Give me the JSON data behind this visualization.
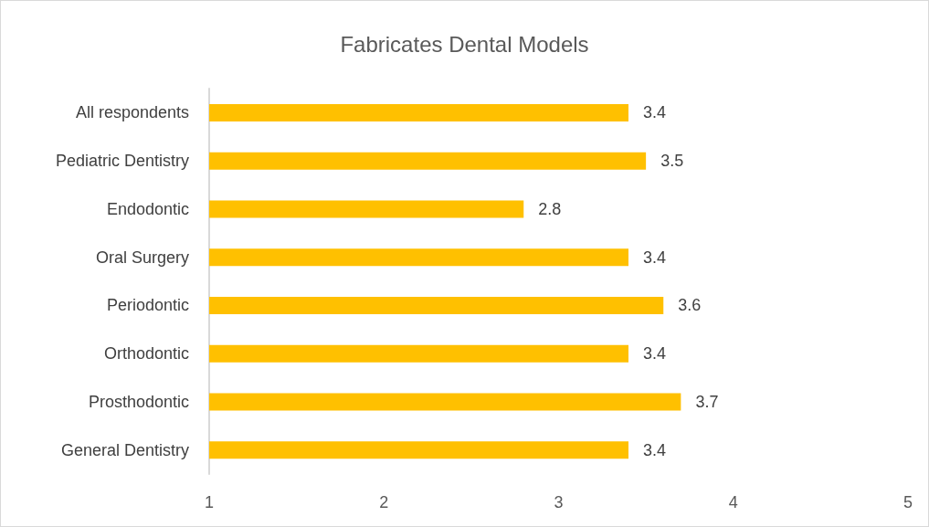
{
  "chart_data": {
    "type": "bar",
    "orientation": "horizontal",
    "title": "Fabricates Dental Models",
    "categories": [
      "All respondents",
      "Pediatric Dentistry",
      "Endodontic",
      "Oral Surgery",
      "Periodontic",
      "Orthodontic",
      "Prosthodontic",
      "General Dentistry"
    ],
    "values": [
      3.4,
      3.5,
      2.8,
      3.4,
      3.6,
      3.4,
      3.7,
      3.4
    ],
    "color": "#ffc000",
    "xlim": [
      1,
      5
    ],
    "xticks": [
      1,
      2,
      3,
      4,
      5
    ],
    "grid": false,
    "data_labels": true
  }
}
